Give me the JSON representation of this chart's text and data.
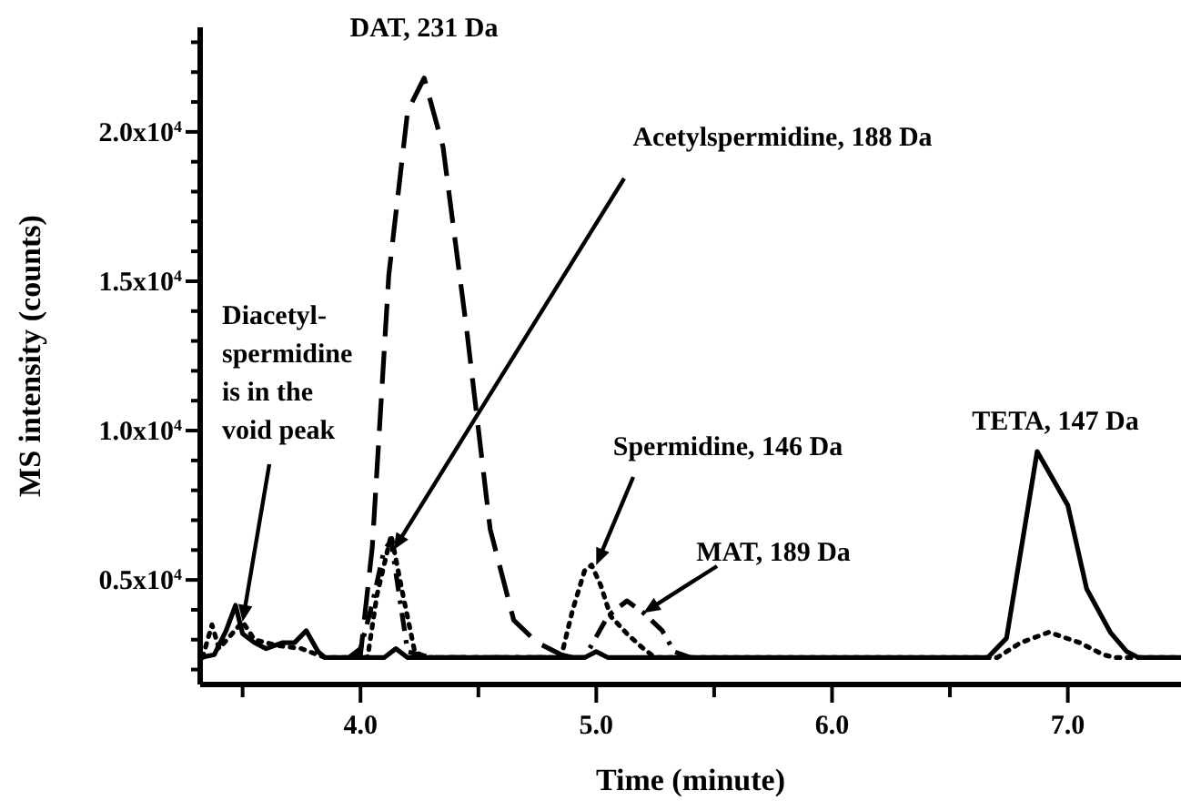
{
  "chart_data": {
    "type": "line",
    "xlabel": "Time (minute)",
    "ylabel": "MS intensity (counts)",
    "xlim": [
      3.32,
      7.48
    ],
    "ylim": [
      1500,
      23500
    ],
    "xticks": [
      {
        "value": 3.5,
        "label": null
      },
      {
        "value": 4,
        "label": "4.0"
      },
      {
        "value": 4.5,
        "label": null
      },
      {
        "value": 5,
        "label": "5.0"
      },
      {
        "value": 5.5,
        "label": null
      },
      {
        "value": 6,
        "label": "6.0"
      },
      {
        "value": 6.5,
        "label": null
      },
      {
        "value": 7,
        "label": "7.0"
      }
    ],
    "yticks": [
      {
        "value": 2000,
        "label": null
      },
      {
        "value": 3000,
        "label": null
      },
      {
        "value": 4000,
        "label": null
      },
      {
        "value": 5000,
        "label": "0.5x10$^{4}$"
      },
      {
        "value": 6000,
        "label": null
      },
      {
        "value": 7000,
        "label": null
      },
      {
        "value": 8000,
        "label": null
      },
      {
        "value": 9000,
        "label": null
      },
      {
        "value": 10000,
        "label": "1.0x10$^{4}$"
      },
      {
        "value": 11000,
        "label": null
      },
      {
        "value": 12000,
        "label": null
      },
      {
        "value": 13000,
        "label": null
      },
      {
        "value": 14000,
        "label": null
      },
      {
        "value": 15000,
        "label": "1.5x10$^{4}$"
      },
      {
        "value": 16000,
        "label": null
      },
      {
        "value": 17000,
        "label": null
      },
      {
        "value": 18000,
        "label": null
      },
      {
        "value": 19000,
        "label": null
      },
      {
        "value": 20000,
        "label": "2.0x10$^{4}$"
      },
      {
        "value": 21000,
        "label": null
      },
      {
        "value": 22000,
        "label": null
      },
      {
        "value": 23000,
        "label": null
      }
    ],
    "grid": false,
    "marker": "none",
    "series": [
      {
        "color": "#000000",
        "line_style": "solid",
        "x": [
          3.32,
          3.38,
          3.43,
          3.47,
          3.5,
          3.55,
          3.6,
          3.67,
          3.72,
          3.77,
          3.82,
          3.85,
          4.1,
          4.15,
          4.2,
          4.95,
          5.0,
          5.05,
          6.66,
          6.74,
          6.87,
          7.0,
          7.08,
          7.18,
          7.25,
          7.3,
          7.48
        ],
        "values": [
          2400,
          2500,
          3300,
          4150,
          3200,
          2900,
          2700,
          2900,
          2900,
          3300,
          2600,
          2400,
          2400,
          2700,
          2400,
          2400,
          2600,
          2400,
          2400,
          3050,
          9300,
          7500,
          4700,
          3250,
          2600,
          2400,
          2400
        ]
      },
      {
        "color": "#000000",
        "line_style": "dashed",
        "x": [
          3.95,
          4.0,
          4.05,
          4.12,
          4.2,
          4.27,
          4.35,
          4.45,
          4.55,
          4.65,
          4.75,
          4.85,
          4.9
        ],
        "values": [
          2400,
          2500,
          6100,
          15200,
          20700,
          21800,
          19500,
          13400,
          6700,
          3650,
          2900,
          2500,
          2400
        ]
      },
      {
        "color": "#000000",
        "line_style": "dotted",
        "x": [
          3.33,
          3.37,
          3.4,
          3.5,
          3.55,
          3.65,
          3.75,
          3.85,
          4.03,
          4.07,
          4.13,
          4.18,
          4.23,
          4.28,
          4.85,
          4.9,
          4.95,
          4.98,
          5.02,
          5.06,
          5.13,
          5.2,
          5.25,
          6.7,
          6.8,
          6.92,
          7.05,
          7.15,
          7.2,
          7.48
        ],
        "values": [
          2400,
          3500,
          2700,
          3600,
          3000,
          2800,
          2700,
          2400,
          2400,
          4500,
          6500,
          4500,
          2600,
          2400,
          2400,
          4000,
          5300,
          5500,
          4800,
          3800,
          3200,
          2700,
          2400,
          2400,
          2900,
          3250,
          2900,
          2500,
          2400,
          2400
        ]
      },
      {
        "color": "#000000",
        "line_style": "dashdot",
        "x": [
          3.95,
          4.0,
          4.05,
          4.1,
          4.13,
          4.2,
          4.3,
          4.95,
          5.05,
          5.13,
          5.2,
          5.28,
          5.33,
          5.4
        ],
        "values": [
          2400,
          2700,
          4200,
          6000,
          6300,
          2600,
          2400,
          2400,
          3800,
          4300,
          3900,
          3300,
          2600,
          2400
        ]
      }
    ],
    "annotations": [
      {
        "text": "DAT, 231 Da",
        "x": 4.27,
        "y": 21800
      },
      {
        "text": "Acetylspermidine, 188 Da",
        "x": 4.14,
        "y": 6000
      },
      {
        "text": "Diacetyl-\nspermidine\nis in the\nvoid peak",
        "x": 3.5,
        "y": 3600
      },
      {
        "text": "Spermidine, 146 Da",
        "x": 5.0,
        "y": 5500
      },
      {
        "text": "MAT, 189 Da",
        "x": 5.2,
        "y": 3900
      },
      {
        "text": "TETA, 147 Da",
        "x": 6.87,
        "y": 9300
      }
    ]
  }
}
